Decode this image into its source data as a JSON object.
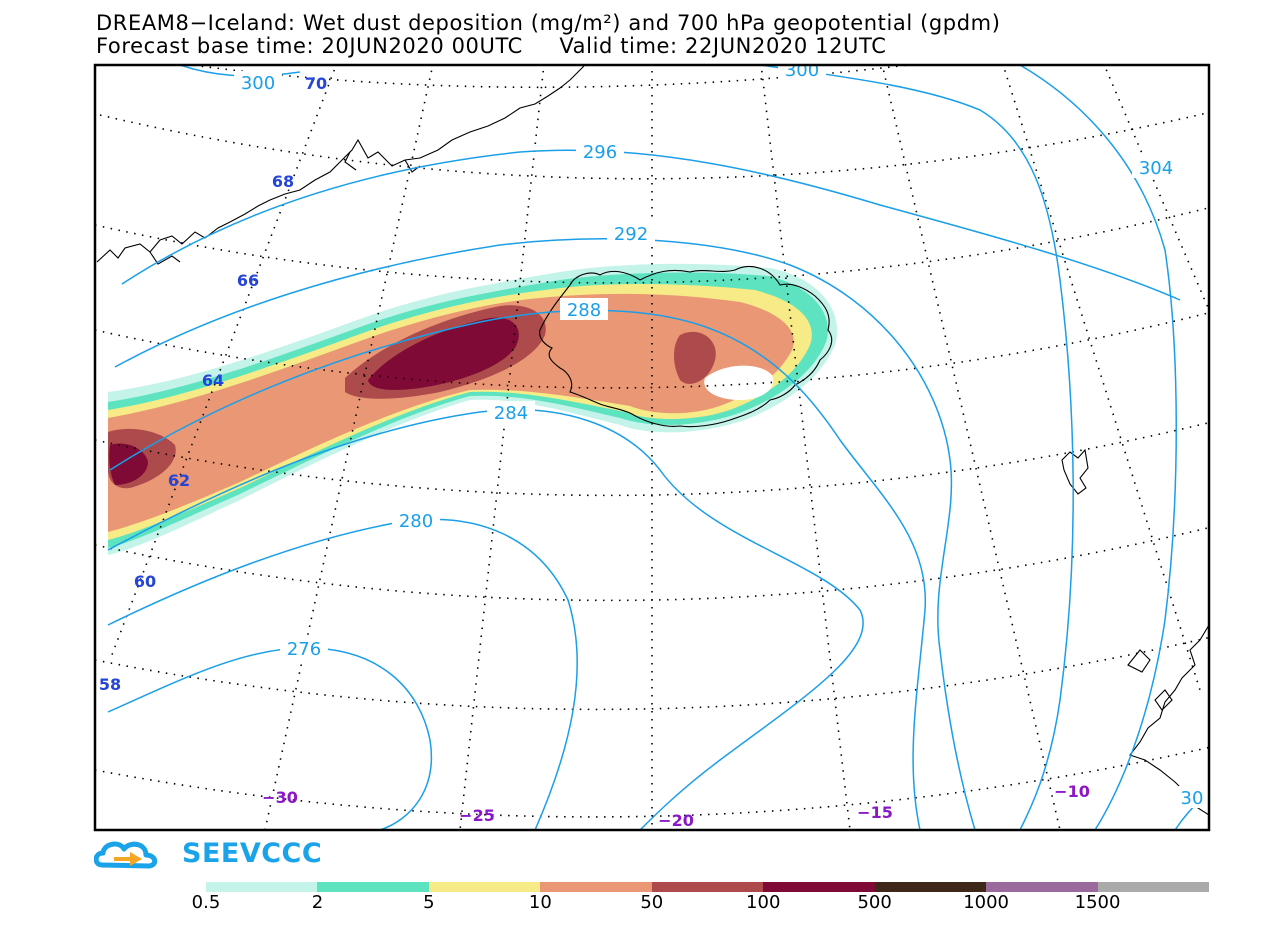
{
  "title_line1": "DREAM8−Iceland: Wet dust deposition (mg/m²) and 700 hPa geopotential (gpdm)",
  "forecast_base_label": "Forecast base time: 20JUN2020 00UTC",
  "valid_time_label": "Valid time: 22JUN2020 12UTC",
  "logo": {
    "text": "SEEVCCC",
    "color": "#1aa3e8"
  },
  "contour_labels": [
    "300",
    "296",
    "292",
    "288",
    "284",
    "280",
    "276",
    "300",
    "304",
    "30"
  ],
  "latitude_labels": [
    "70",
    "68",
    "66",
    "64",
    "62",
    "60",
    "58"
  ],
  "longitude_labels": [
    "−30",
    "−25",
    "−20",
    "−15",
    "−10"
  ],
  "legend": {
    "colors": [
      "#c4f3ea",
      "#5ee3c0",
      "#f6eb86",
      "#ea9775",
      "#ad4a4c",
      "#7f0a35",
      "#3e2718",
      "#9a6a9c",
      "#aaaaaa"
    ],
    "labels": [
      "0.5",
      "2",
      "5",
      "10",
      "50",
      "100",
      "500",
      "1000",
      "1500"
    ]
  },
  "colors": {
    "contour": "#1a9fe8",
    "lat_label": "#2545d8",
    "lon_label": "#8a18c8",
    "coast": "#000000"
  }
}
